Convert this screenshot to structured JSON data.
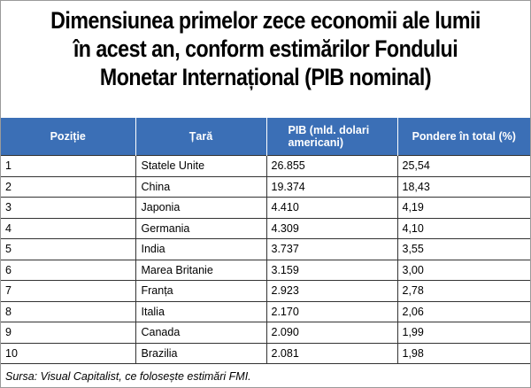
{
  "title": {
    "line1": "Dimensiunea primelor zece economii ale lumii",
    "line2": "în acest an, conform estimărilor Fondului",
    "line3": "Monetar Internațional (PIB nominal)"
  },
  "table": {
    "headers": {
      "position": "Poziție",
      "country": "Țară",
      "gdp_line1": "PIB (mld. dolari",
      "gdp_line2": "americani)",
      "share": "Pondere în total (%)"
    },
    "rows": [
      {
        "position": "1",
        "country": "Statele Unite",
        "gdp": "26.855",
        "share": "25,54"
      },
      {
        "position": "2",
        "country": "China",
        "gdp": "19.374",
        "share": "18,43"
      },
      {
        "position": "3",
        "country": "Japonia",
        "gdp": "4.410",
        "share": "4,19"
      },
      {
        "position": "4",
        "country": "Germania",
        "gdp": "4.309",
        "share": "4,10"
      },
      {
        "position": "5",
        "country": "India",
        "gdp": "3.737",
        "share": "3,55"
      },
      {
        "position": "6",
        "country": "Marea Britanie",
        "gdp": "3.159",
        "share": "3,00"
      },
      {
        "position": "7",
        "country": "Franța",
        "gdp": "2.923",
        "share": "2,78"
      },
      {
        "position": "8",
        "country": "Italia",
        "gdp": "2.170",
        "share": "2,06"
      },
      {
        "position": "9",
        "country": "Canada",
        "gdp": "2.090",
        "share": "1,99"
      },
      {
        "position": "10",
        "country": "Brazilia",
        "gdp": "2.081",
        "share": "1,98"
      }
    ]
  },
  "source": "Sursa: Visual Capitalist, ce folosește estimări FMI.",
  "colors": {
    "header_background": "#3b6fb6",
    "header_text": "#ffffff"
  }
}
